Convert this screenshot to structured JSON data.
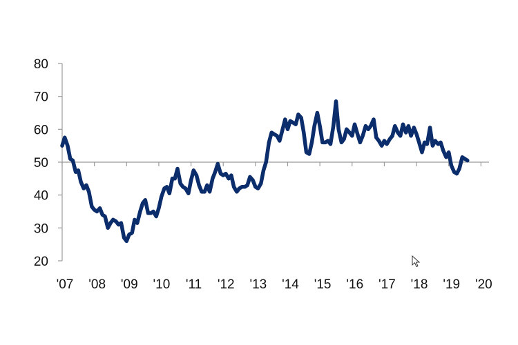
{
  "chart_data": {
    "type": "line",
    "title": "",
    "xlabel": "",
    "ylabel": "",
    "ylim": [
      20,
      80
    ],
    "yticks": [
      20,
      30,
      40,
      50,
      60,
      70,
      80
    ],
    "xlim": [
      2007,
      2020.25
    ],
    "xtick_labels": [
      "'07",
      "'08",
      "'09",
      "'10",
      "'11",
      "'12",
      "'13",
      "'14",
      "'15",
      "'16",
      "'17",
      "'18",
      "'19",
      "'20"
    ],
    "reference_line": 50,
    "grid": false,
    "legend": "none",
    "line_color": "#0c2d6b",
    "axis_color": "#9a9a9a",
    "series": [
      {
        "points": [
          [
            2007.0,
            55
          ],
          [
            2007.08,
            57.5
          ],
          [
            2007.17,
            55
          ],
          [
            2007.25,
            51
          ],
          [
            2007.33,
            50.5
          ],
          [
            2007.42,
            47
          ],
          [
            2007.5,
            47.5
          ],
          [
            2007.58,
            44
          ],
          [
            2007.67,
            42
          ],
          [
            2007.75,
            43
          ],
          [
            2007.83,
            41
          ],
          [
            2007.92,
            36.5
          ],
          [
            2008.0,
            35.5
          ],
          [
            2008.08,
            35
          ],
          [
            2008.17,
            36
          ],
          [
            2008.25,
            34
          ],
          [
            2008.33,
            33.5
          ],
          [
            2008.42,
            30
          ],
          [
            2008.5,
            31.5
          ],
          [
            2008.58,
            32.5
          ],
          [
            2008.67,
            32
          ],
          [
            2008.75,
            31
          ],
          [
            2008.83,
            31.5
          ],
          [
            2008.92,
            27
          ],
          [
            2009.0,
            26
          ],
          [
            2009.08,
            28
          ],
          [
            2009.17,
            28.5
          ],
          [
            2009.25,
            32.5
          ],
          [
            2009.33,
            31.5
          ],
          [
            2009.42,
            35
          ],
          [
            2009.5,
            37.5
          ],
          [
            2009.58,
            38.5
          ],
          [
            2009.67,
            34.5
          ],
          [
            2009.75,
            34.5
          ],
          [
            2009.83,
            35
          ],
          [
            2009.92,
            33.5
          ],
          [
            2010.0,
            36
          ],
          [
            2010.08,
            39.5
          ],
          [
            2010.17,
            42
          ],
          [
            2010.25,
            42.5
          ],
          [
            2010.33,
            40.5
          ],
          [
            2010.42,
            45
          ],
          [
            2010.5,
            45
          ],
          [
            2010.58,
            48
          ],
          [
            2010.67,
            43.5
          ],
          [
            2010.75,
            42.5
          ],
          [
            2010.83,
            42
          ],
          [
            2010.92,
            40.5
          ],
          [
            2011.0,
            44.5
          ],
          [
            2011.08,
            47.5
          ],
          [
            2011.17,
            46
          ],
          [
            2011.25,
            43
          ],
          [
            2011.33,
            41
          ],
          [
            2011.42,
            41
          ],
          [
            2011.5,
            43
          ],
          [
            2011.58,
            41
          ],
          [
            2011.67,
            45
          ],
          [
            2011.75,
            47
          ],
          [
            2011.83,
            49.5
          ],
          [
            2011.92,
            46.5
          ],
          [
            2012.0,
            46
          ],
          [
            2012.08,
            46.5
          ],
          [
            2012.17,
            45
          ],
          [
            2012.25,
            46
          ],
          [
            2012.33,
            42.5
          ],
          [
            2012.42,
            41
          ],
          [
            2012.5,
            42
          ],
          [
            2012.58,
            42.5
          ],
          [
            2012.67,
            42.5
          ],
          [
            2012.75,
            43
          ],
          [
            2012.83,
            45.5
          ],
          [
            2012.92,
            44.5
          ],
          [
            2013.0,
            42.5
          ],
          [
            2013.08,
            42
          ],
          [
            2013.17,
            43.5
          ],
          [
            2013.25,
            47.5
          ],
          [
            2013.33,
            50
          ],
          [
            2013.42,
            56
          ],
          [
            2013.5,
            59
          ],
          [
            2013.58,
            58.5
          ],
          [
            2013.67,
            58
          ],
          [
            2013.75,
            56.5
          ],
          [
            2013.83,
            59.5
          ],
          [
            2013.92,
            63
          ],
          [
            2014.0,
            60
          ],
          [
            2014.08,
            62.5
          ],
          [
            2014.17,
            62
          ],
          [
            2014.25,
            61.5
          ],
          [
            2014.33,
            64.5
          ],
          [
            2014.42,
            63.5
          ],
          [
            2014.5,
            59
          ],
          [
            2014.58,
            53
          ],
          [
            2014.67,
            52.5
          ],
          [
            2014.75,
            56
          ],
          [
            2014.83,
            61
          ],
          [
            2014.92,
            65
          ],
          [
            2015.0,
            61
          ],
          [
            2015.08,
            56
          ],
          [
            2015.17,
            56
          ],
          [
            2015.25,
            56.5
          ],
          [
            2015.33,
            55.5
          ],
          [
            2015.42,
            61
          ],
          [
            2015.5,
            68.5
          ],
          [
            2015.58,
            60
          ],
          [
            2015.67,
            56
          ],
          [
            2015.75,
            57
          ],
          [
            2015.83,
            60
          ],
          [
            2015.92,
            59
          ],
          [
            2016.0,
            58
          ],
          [
            2016.08,
            61.5
          ],
          [
            2016.17,
            58.5
          ],
          [
            2016.25,
            56
          ],
          [
            2016.33,
            58
          ],
          [
            2016.42,
            61
          ],
          [
            2016.5,
            60
          ],
          [
            2016.58,
            61
          ],
          [
            2016.67,
            63
          ],
          [
            2016.75,
            57.5
          ],
          [
            2016.83,
            56.5
          ],
          [
            2016.92,
            55
          ],
          [
            2017.0,
            56.5
          ],
          [
            2017.08,
            55.5
          ],
          [
            2017.17,
            57
          ],
          [
            2017.25,
            58
          ],
          [
            2017.33,
            61
          ],
          [
            2017.42,
            59
          ],
          [
            2017.5,
            58
          ],
          [
            2017.58,
            61.5
          ],
          [
            2017.67,
            59
          ],
          [
            2017.75,
            61
          ],
          [
            2017.83,
            58
          ],
          [
            2017.92,
            60.5
          ],
          [
            2018.0,
            58.5
          ],
          [
            2018.08,
            56
          ],
          [
            2018.17,
            53
          ],
          [
            2018.25,
            56
          ],
          [
            2018.33,
            55.5
          ],
          [
            2018.42,
            60.5
          ],
          [
            2018.5,
            55
          ],
          [
            2018.58,
            56.5
          ],
          [
            2018.67,
            55.5
          ],
          [
            2018.75,
            56
          ],
          [
            2018.83,
            53.5
          ],
          [
            2018.92,
            51.5
          ],
          [
            2019.0,
            53
          ],
          [
            2019.08,
            49
          ],
          [
            2019.17,
            47
          ],
          [
            2019.25,
            46.5
          ],
          [
            2019.33,
            48
          ],
          [
            2019.42,
            51.5
          ],
          [
            2019.5,
            51
          ],
          [
            2019.58,
            50.5
          ]
        ]
      }
    ]
  }
}
